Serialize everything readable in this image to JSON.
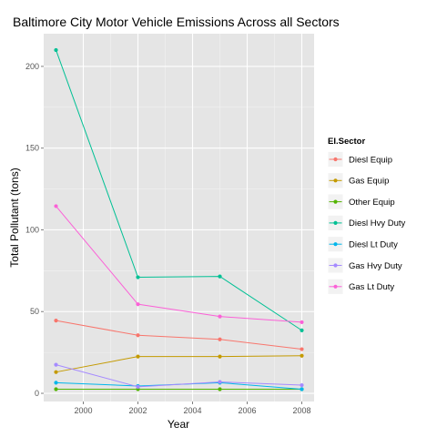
{
  "chart_data": {
    "type": "line",
    "title": "Baltimore City Motor Vehicle Emissions Across all Sectors",
    "xlabel": "Year",
    "ylabel": "Total Pollutant (tons)",
    "x": [
      1999,
      2002,
      2005,
      2008
    ],
    "xlim": [
      1998.55,
      2008.45
    ],
    "ylim": [
      -5,
      220
    ],
    "xticks": [
      2000,
      2002,
      2004,
      2006,
      2008
    ],
    "yticks": [
      0,
      50,
      100,
      150,
      200
    ],
    "grid": true,
    "legend": {
      "title": "EI.Sector",
      "placement": "right"
    },
    "series": [
      {
        "name": "Diesl Equip",
        "color": "#F8766D",
        "values": [
          44.5,
          35.5,
          33,
          27
        ]
      },
      {
        "name": "Gas Equip",
        "color": "#C49A00",
        "values": [
          13,
          22.5,
          22.5,
          23
        ]
      },
      {
        "name": "Other Equip",
        "color": "#53B400",
        "values": [
          2.5,
          2.5,
          2.5,
          2.5
        ]
      },
      {
        "name": "Diesl Hvy Duty",
        "color": "#00C094",
        "values": [
          210,
          71,
          71.5,
          38.5
        ]
      },
      {
        "name": "Diesl Lt Duty",
        "color": "#00B6EB",
        "values": [
          6.5,
          4.5,
          6.5,
          2.5
        ]
      },
      {
        "name": "Gas Hvy Duty",
        "color": "#A58AFF",
        "values": [
          17.5,
          4,
          7,
          5
        ]
      },
      {
        "name": "Gas Lt Duty",
        "color": "#FB61D7",
        "values": [
          114.5,
          54.5,
          47,
          43.5
        ]
      }
    ]
  }
}
